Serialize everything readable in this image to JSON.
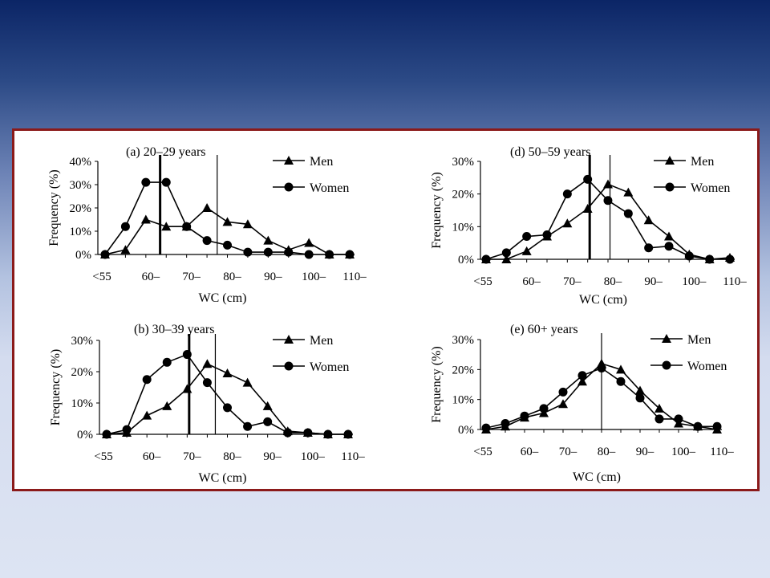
{
  "chart_data": [
    {
      "type": "line",
      "title": "(a) 20–29 years",
      "xlabel": "WC (cm)",
      "ylabel": "Frequency (%)",
      "x_ticks": [
        "<55",
        "60–",
        "70–",
        "80–",
        "90–",
        "100–",
        "110–"
      ],
      "x": [
        "<55",
        "55–",
        "60–",
        "65–",
        "70–",
        "75–",
        "80–",
        "85–",
        "90–",
        "95–",
        "100–",
        "105–",
        "110–"
      ],
      "y_ticks": [
        "0%",
        "10%",
        "20%",
        "30%",
        "40%"
      ],
      "ylim": [
        0,
        40
      ],
      "series": [
        {
          "name": "Men",
          "marker": "triangle",
          "values": [
            0,
            2,
            15,
            12,
            12,
            20,
            14,
            13,
            6,
            2,
            5,
            0,
            0
          ]
        },
        {
          "name": "Women",
          "marker": "circle",
          "values": [
            0,
            12,
            31,
            31,
            12,
            6,
            4,
            1,
            1,
            1,
            0,
            0,
            0
          ]
        }
      ],
      "median_lines": [
        {
          "x": 63.5,
          "style": "thick"
        },
        {
          "x": 77.5,
          "style": "thin"
        }
      ],
      "legend": "top-right"
    },
    {
      "type": "line",
      "title": "(b) 30–39 years",
      "xlabel": "WC (cm)",
      "ylabel": "Frequency (%)",
      "x_ticks": [
        "<55",
        "60–",
        "70–",
        "80–",
        "90–",
        "100–",
        "110–"
      ],
      "x": [
        "<55",
        "55–",
        "60–",
        "65–",
        "70–",
        "75–",
        "80–",
        "85–",
        "90–",
        "95–",
        "100–",
        "105–",
        "110–"
      ],
      "y_ticks": [
        "0%",
        "10%",
        "20%",
        "30%"
      ],
      "ylim": [
        0,
        30
      ],
      "series": [
        {
          "name": "Men",
          "marker": "triangle",
          "values": [
            0,
            0.5,
            6,
            9,
            14.5,
            22.5,
            19.5,
            16.5,
            9,
            1,
            0.5,
            0,
            0
          ]
        },
        {
          "name": "Women",
          "marker": "circle",
          "values": [
            0,
            1.5,
            17.5,
            23,
            25.5,
            16.5,
            8.5,
            2.5,
            4,
            0.5,
            0.5,
            0,
            0
          ]
        }
      ],
      "median_lines": [
        {
          "x": 70.5,
          "style": "thick"
        },
        {
          "x": 77,
          "style": "thin"
        }
      ],
      "legend": "top-right"
    },
    {
      "type": "line",
      "title": "(d) 50–59 years",
      "xlabel": "WC (cm)",
      "ylabel": "Frequency (%)",
      "x_ticks": [
        "<55",
        "60–",
        "70–",
        "80–",
        "90–",
        "100–",
        "110–"
      ],
      "x": [
        "<55",
        "55–",
        "60–",
        "65–",
        "70–",
        "75–",
        "80–",
        "85–",
        "90–",
        "95–",
        "100–",
        "105–",
        "110–"
      ],
      "y_ticks": [
        "0%",
        "10%",
        "20%",
        "30%"
      ],
      "ylim": [
        0,
        30
      ],
      "series": [
        {
          "name": "Men",
          "marker": "triangle",
          "values": [
            0,
            0,
            2.5,
            7,
            11,
            15.5,
            23,
            20.5,
            12,
            7,
            1.5,
            0,
            0.5
          ]
        },
        {
          "name": "Women",
          "marker": "circle",
          "values": [
            0,
            2,
            7,
            7.5,
            20,
            24.5,
            18,
            14,
            3.5,
            4,
            1,
            0,
            0
          ]
        }
      ],
      "median_lines": [
        {
          "x": 75.5,
          "style": "thick"
        },
        {
          "x": 80.5,
          "style": "thin"
        }
      ],
      "legend": "top-right"
    },
    {
      "type": "line",
      "title": "(e) 60+ years",
      "xlabel": "WC (cm)",
      "ylabel": "Frequency (%)",
      "x_ticks": [
        "<55",
        "60–",
        "70–",
        "80–",
        "90–",
        "100–",
        "110–"
      ],
      "x": [
        "<55",
        "55–",
        "60–",
        "65–",
        "70–",
        "75–",
        "80–",
        "85–",
        "90–",
        "95–",
        "100–",
        "105–",
        "110–"
      ],
      "y_ticks": [
        "0%",
        "10%",
        "20%",
        "30%"
      ],
      "ylim": [
        0,
        30
      ],
      "series": [
        {
          "name": "Men",
          "marker": "triangle",
          "values": [
            0,
            1,
            4,
            5.5,
            8.5,
            16,
            22,
            20,
            13,
            7,
            2,
            1,
            0
          ]
        },
        {
          "name": "Women",
          "marker": "circle",
          "values": [
            0.5,
            2,
            4.5,
            7,
            12.5,
            18,
            20.5,
            16,
            10.5,
            3.5,
            3.5,
            1,
            1
          ]
        }
      ],
      "median_lines": [
        {
          "x": 80,
          "style": "thin"
        }
      ],
      "legend": "top-right"
    }
  ]
}
